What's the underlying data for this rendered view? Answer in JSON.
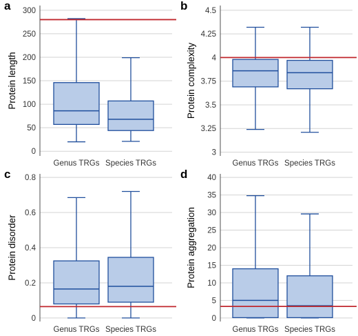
{
  "chart_data": [
    {
      "type": "box",
      "panel": "a",
      "ylabel": "Protein length",
      "yticks": [
        0,
        50,
        100,
        150,
        200,
        250,
        300
      ],
      "ytick_labels": [
        "0",
        "50",
        "100",
        "150",
        "200",
        "250",
        "300"
      ],
      "ylim": [
        -10,
        310
      ],
      "categories": [
        "Genus TRGs",
        "Species TRGs"
      ],
      "boxes": [
        {
          "whisker_low": 20,
          "q1": 57,
          "median": 86,
          "q3": 146,
          "whisker_high": 282
        },
        {
          "whisker_low": 21,
          "q1": 44,
          "median": 68,
          "q3": 107,
          "whisker_high": 199
        }
      ],
      "reference_line": 280,
      "reference_color": "#c0272d",
      "box_fill": "#b9cce8",
      "box_stroke": "#1f4e9c"
    },
    {
      "type": "box",
      "panel": "b",
      "ylabel": "Protein complexity",
      "yticks": [
        3,
        3.25,
        3.5,
        3.75,
        4,
        4.25,
        4.5
      ],
      "ytick_labels": [
        "3",
        "3.25",
        "3.5",
        "3.75",
        "4",
        "4.25",
        "4.5"
      ],
      "ylim": [
        2.96,
        4.55
      ],
      "categories": [
        "Genus TRGs",
        "Species TRGs"
      ],
      "boxes": [
        {
          "whisker_low": 3.24,
          "q1": 3.69,
          "median": 3.86,
          "q3": 3.98,
          "whisker_high": 4.32
        },
        {
          "whisker_low": 3.21,
          "q1": 3.67,
          "median": 3.84,
          "q3": 3.97,
          "whisker_high": 4.32
        }
      ],
      "reference_line": 4.0,
      "reference_color": "#c0272d",
      "box_fill": "#b9cce8",
      "box_stroke": "#1f4e9c"
    },
    {
      "type": "box",
      "panel": "c",
      "ylabel": "Protein disorder",
      "yticks": [
        0,
        0.2,
        0.4,
        0.6,
        0.8
      ],
      "ytick_labels": [
        "0",
        "0.2",
        "0.4",
        "0.6",
        "0.8"
      ],
      "ylim": [
        -0.02,
        0.82
      ],
      "categories": [
        "Genus TRGs",
        "Species TRGs"
      ],
      "boxes": [
        {
          "whisker_low": 0.0,
          "q1": 0.08,
          "median": 0.165,
          "q3": 0.325,
          "whisker_high": 0.685
        },
        {
          "whisker_low": 0.0,
          "q1": 0.09,
          "median": 0.18,
          "q3": 0.345,
          "whisker_high": 0.72
        }
      ],
      "reference_line": 0.065,
      "reference_color": "#c0272d",
      "box_fill": "#b9cce8",
      "box_stroke": "#1f4e9c"
    },
    {
      "type": "box",
      "panel": "d",
      "ylabel": "Protein aggregation",
      "yticks": [
        0,
        5,
        10,
        15,
        20,
        25,
        30,
        35,
        40
      ],
      "ytick_labels": [
        "0",
        "5",
        "10",
        "15",
        "20",
        "25",
        "30",
        "35",
        "40"
      ],
      "ylim": [
        -1,
        41
      ],
      "categories": [
        "Genus TRGs",
        "Species TRGs"
      ],
      "boxes": [
        {
          "whisker_low": 0.0,
          "q1": 0.1,
          "median": 5.0,
          "q3": 14.0,
          "whisker_high": 34.8
        },
        {
          "whisker_low": 0.0,
          "q1": 0.1,
          "median": 3.5,
          "q3": 12.0,
          "whisker_high": 29.6
        }
      ],
      "reference_line": 3.3,
      "reference_color": "#c0272d",
      "box_fill": "#b9cce8",
      "box_stroke": "#1f4e9c"
    }
  ]
}
